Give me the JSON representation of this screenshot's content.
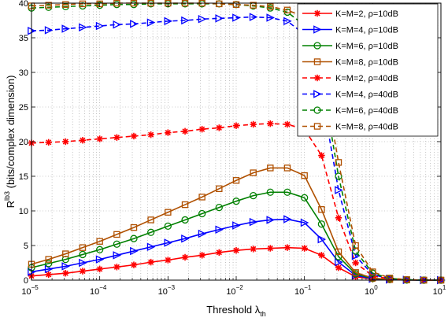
{
  "chart_data": {
    "type": "line",
    "xscale": "log",
    "xlim": [
      1e-05,
      10
    ],
    "ylim": [
      0,
      40
    ],
    "grid": true,
    "legend_position": "top-right",
    "xlabel": "Threshold λ",
    "xlabel_sub": "th",
    "ylabel_prefix": "R",
    "ylabel_sup": "lb3",
    "ylabel_suffix": " (bits/complex dimension)",
    "xticks": [
      {
        "value": 1e-05,
        "base": "10",
        "exp": "−5"
      },
      {
        "value": 0.0001,
        "base": "10",
        "exp": "−4"
      },
      {
        "value": 0.001,
        "base": "10",
        "exp": "−3"
      },
      {
        "value": 0.01,
        "base": "10",
        "exp": "−2"
      },
      {
        "value": 0.1,
        "base": "10",
        "exp": "−1"
      },
      {
        "value": 1,
        "base": "10",
        "exp": "0"
      },
      {
        "value": 10,
        "base": "10",
        "exp": "1"
      }
    ],
    "yticks": [
      0,
      5,
      10,
      15,
      20,
      25,
      30,
      35,
      40
    ],
    "x": [
      1e-05,
      1.78e-05,
      3.16e-05,
      5.62e-05,
      0.0001,
      0.000178,
      0.000316,
      0.000562,
      0.001,
      0.00178,
      0.00316,
      0.00562,
      0.01,
      0.0178,
      0.0316,
      0.0562,
      0.1,
      0.178,
      0.316,
      0.562,
      1,
      1.78,
      3.16,
      5.62,
      10
    ],
    "series": [
      {
        "name": "K=M=2, ρ=10dB",
        "color": "#ff0000",
        "dash": "solid",
        "marker": "star",
        "values": [
          0.6,
          0.8,
          1.0,
          1.3,
          1.6,
          1.9,
          2.2,
          2.6,
          2.9,
          3.3,
          3.6,
          4.0,
          4.3,
          4.5,
          4.6,
          4.7,
          4.6,
          3.6,
          1.8,
          0.5,
          0.15,
          0.05,
          0.02,
          0.0,
          0.0
        ]
      },
      {
        "name": "K=M=4, ρ=10dB",
        "color": "#0000ff",
        "dash": "solid",
        "marker": "triangle-right",
        "values": [
          1.2,
          1.6,
          2.0,
          2.5,
          3.0,
          3.6,
          4.2,
          4.8,
          5.4,
          6.0,
          6.7,
          7.3,
          7.9,
          8.4,
          8.7,
          8.8,
          8.3,
          5.9,
          2.6,
          0.7,
          0.2,
          0.07,
          0.02,
          0.0,
          0.0
        ]
      },
      {
        "name": "K=M=6, ρ=10dB",
        "color": "#008000",
        "dash": "solid",
        "marker": "circle",
        "values": [
          1.8,
          2.4,
          3.0,
          3.7,
          4.4,
          5.2,
          6.0,
          6.9,
          7.8,
          8.7,
          9.6,
          10.5,
          11.4,
          12.2,
          12.7,
          12.7,
          11.9,
          8.1,
          3.4,
          0.9,
          0.25,
          0.08,
          0.02,
          0.0,
          0.0
        ]
      },
      {
        "name": "K=M=8, ρ=10dB",
        "color": "#b05000",
        "dash": "solid",
        "marker": "square",
        "values": [
          2.3,
          3.0,
          3.8,
          4.7,
          5.6,
          6.6,
          7.6,
          8.7,
          9.8,
          10.9,
          12.0,
          13.2,
          14.4,
          15.5,
          16.2,
          16.2,
          15.1,
          10.2,
          4.1,
          1.1,
          0.3,
          0.09,
          0.03,
          0.0,
          0.0
        ]
      },
      {
        "name": "K=M=2, ρ=40dB",
        "color": "#ff0000",
        "dash": "dashed",
        "marker": "star",
        "values": [
          19.8,
          19.9,
          20.0,
          20.2,
          20.4,
          20.6,
          20.8,
          21.0,
          21.3,
          21.5,
          21.8,
          22.0,
          22.3,
          22.5,
          22.6,
          22.5,
          21.8,
          18.0,
          9.0,
          2.5,
          0.6,
          0.2,
          0.05,
          0.0,
          0.0
        ]
      },
      {
        "name": "K=M=4, ρ=40dB",
        "color": "#0000ff",
        "dash": "dashed",
        "marker": "triangle-right",
        "values": [
          36.0,
          36.1,
          36.3,
          36.5,
          36.7,
          36.9,
          37.0,
          37.2,
          37.4,
          37.5,
          37.7,
          37.8,
          37.9,
          38.0,
          37.9,
          37.4,
          35.5,
          27.0,
          13.0,
          3.5,
          0.8,
          0.2,
          0.05,
          0.0,
          0.0
        ]
      },
      {
        "name": "K=M=6, ρ=40dB",
        "color": "#008000",
        "dash": "dashed",
        "marker": "circle",
        "values": [
          39.3,
          39.4,
          39.5,
          39.6,
          39.7,
          39.8,
          39.8,
          39.9,
          39.9,
          39.9,
          39.9,
          39.9,
          39.8,
          39.6,
          39.3,
          38.7,
          36.8,
          29.5,
          15.0,
          4.2,
          1.0,
          0.25,
          0.05,
          0.0,
          0.0
        ]
      },
      {
        "name": "K=M=8, ρ=40dB",
        "color": "#b05000",
        "dash": "dashed",
        "marker": "square",
        "values": [
          39.6,
          39.7,
          39.8,
          39.9,
          39.9,
          40.0,
          40.0,
          40.0,
          40.0,
          40.0,
          40.0,
          39.9,
          39.8,
          39.7,
          39.5,
          39.0,
          38.0,
          31.0,
          17.0,
          5.0,
          1.2,
          0.3,
          0.08,
          0.0,
          0.0
        ]
      }
    ]
  }
}
